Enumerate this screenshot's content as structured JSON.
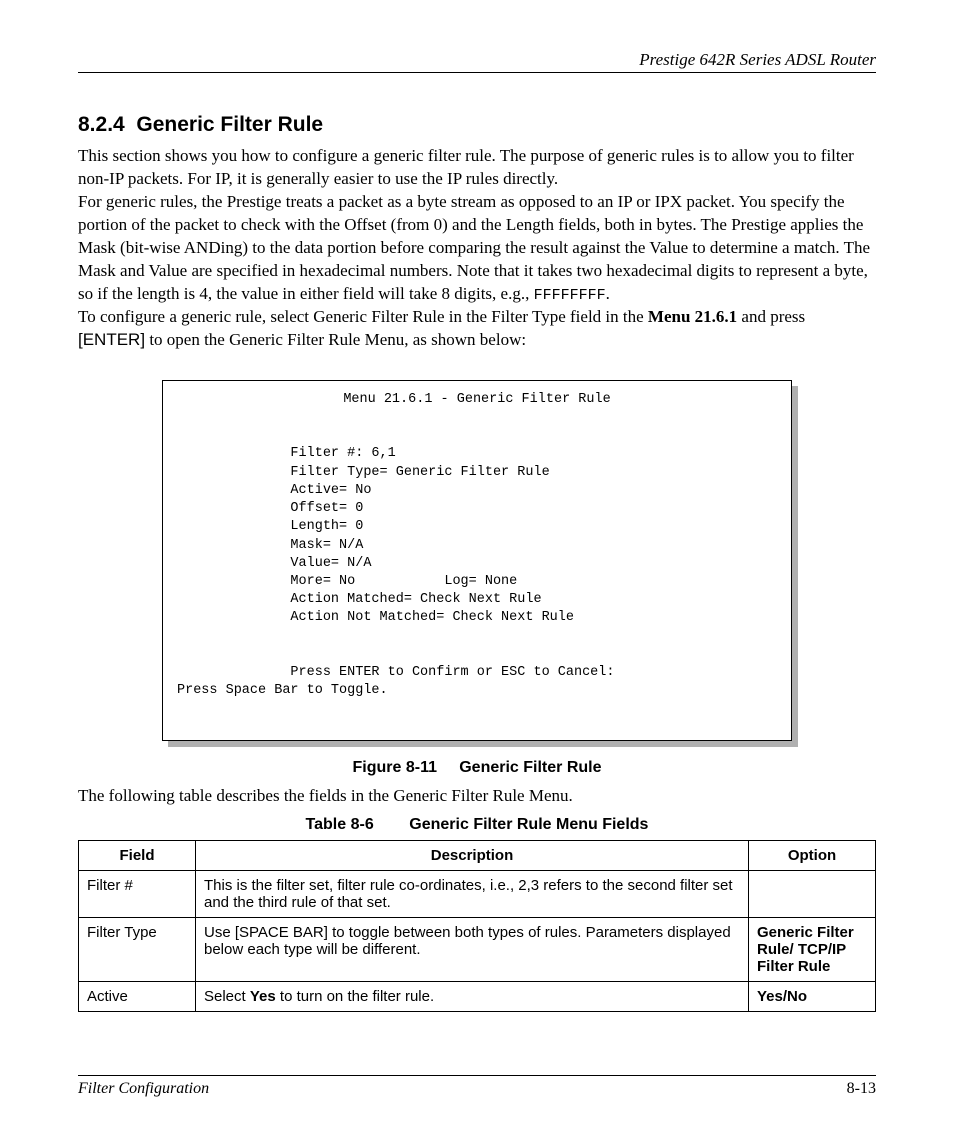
{
  "header": {
    "running_title": "Prestige 642R Series ADSL Router"
  },
  "section": {
    "number": "8.2.4",
    "title": "Generic Filter Rule",
    "para1": "This section shows you how to configure a generic filter rule.  The purpose of generic rules is to allow you to filter non-IP packets.  For IP, it is generally easier to use the IP rules directly.",
    "para2a": "For generic rules, the Prestige treats a packet as a byte stream as opposed to an IP or IPX packet. You specify the portion of the packet to check with the Offset (from 0) and the Length fields, both in bytes.  The Prestige applies the Mask (bit-wise ANDing) to the data portion before comparing the result against the Value to determine a match.  The Mask and Value are specified in hexadecimal numbers.  Note that it takes two hexadecimal digits to represent a byte, so if the length is 4, the value in either field will take 8 digits, e.g., ",
    "para2_code": "FFFFFFFF",
    "para2b": ".",
    "para3a": "To configure a generic rule, select Generic Filter Rule in the Filter Type field in the ",
    "para3_bold": "Menu 21.6.1",
    "para3b": " and press ",
    "para3_enter": "[ENTER]",
    "para3c": " to open the Generic Filter Rule Menu, as shown below:"
  },
  "terminal": {
    "title": "Menu 21.6.1 - Generic Filter Rule",
    "lines": [
      "Filter #: 6,1",
      "Filter Type= Generic Filter Rule",
      "Active= No",
      "Offset= 0",
      "Length= 0",
      "Mask= N/A",
      "Value= N/A",
      "More= No           Log= None",
      "Action Matched= Check Next Rule",
      "Action Not Matched= Check Next Rule"
    ],
    "prompt": "Press ENTER to Confirm or ESC to Cancel:",
    "footer_line": "Press Space Bar to Toggle."
  },
  "figure": {
    "label": "Figure 8-11",
    "title": "Generic Filter Rule"
  },
  "after_figure": "The following table describes the fields in the Generic Filter Rule Menu.",
  "table": {
    "label": "Table 8-6",
    "title": "Generic Filter Rule Menu Fields",
    "columns": [
      "Field",
      "Description",
      "Option"
    ],
    "rows": [
      {
        "field": "Filter #",
        "desc": "This is the filter set, filter rule co-ordinates, i.e., 2,3 refers to the second filter set and the third rule of that set.",
        "option": ""
      },
      {
        "field": "Filter Type",
        "desc": "Use [SPACE BAR] to toggle between both types of rules. Parameters displayed below each type will be different.",
        "option": "Generic Filter Rule/ TCP/IP Filter Rule"
      },
      {
        "field": "Active",
        "desc_pre": "Select ",
        "desc_bold": "Yes",
        "desc_post": " to turn on the filter rule.",
        "option": "Yes/No"
      }
    ]
  },
  "footer": {
    "left": "Filter Configuration",
    "right": "8-13"
  }
}
